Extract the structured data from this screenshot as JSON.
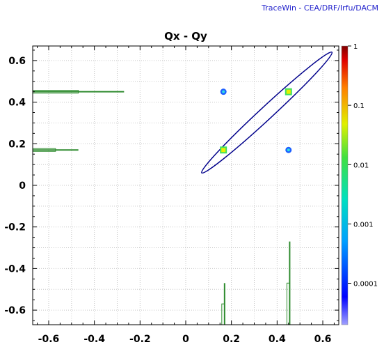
{
  "header": {
    "credit": "TraceWin - CEA/DRF/Irfu/DACM"
  },
  "chart_data": {
    "type": "scatter",
    "title": "Qx - Qy",
    "xlabel": "",
    "ylabel": "",
    "xlim": [
      -0.67,
      0.67
    ],
    "ylim": [
      -0.67,
      0.67
    ],
    "xticks": [
      -0.6,
      -0.4,
      -0.2,
      0,
      0.2,
      0.4,
      0.6
    ],
    "xtick_labels": [
      "-0.6",
      "-0.4",
      "-0.2",
      "0",
      "0.2",
      "0.4",
      "0.6"
    ],
    "yticks": [
      -0.6,
      -0.4,
      -0.2,
      0,
      0.2,
      0.4,
      0.6
    ],
    "ytick_labels": [
      "-0.6",
      "-0.4",
      "-0.2",
      "0",
      "0.2",
      "0.4",
      "0.6"
    ],
    "grid": true,
    "points": [
      {
        "x": 0.165,
        "y": 0.45,
        "level": "low"
      },
      {
        "x": 0.45,
        "y": 0.45,
        "level": "mid"
      },
      {
        "x": 0.165,
        "y": 0.17,
        "level": "mid"
      },
      {
        "x": 0.45,
        "y": 0.17,
        "level": "low"
      }
    ],
    "ellipse": {
      "x1": 0.07,
      "y1": 0.06,
      "x2": 0.64,
      "y2": 0.64,
      "semi_minor": 0.028
    },
    "x_histogram": [
      {
        "x": 0.17,
        "height": 0.2
      },
      {
        "x": 0.455,
        "height": 0.4
      }
    ],
    "y_histogram": [
      {
        "y": 0.45,
        "height": 0.4
      },
      {
        "y": 0.17,
        "height": 0.2
      }
    ],
    "colorbar": {
      "scale": "log",
      "range": [
        2e-05,
        1
      ],
      "ticks": [
        1,
        0.1,
        0.01,
        0.001,
        0.0001
      ],
      "tick_labels": [
        "1",
        "0.1",
        "0.01",
        "0.001",
        "0.0001"
      ]
    },
    "colors": {
      "ellipse": "#00008b",
      "histogram": "#2e8b2e",
      "grid": "#c8c8c8",
      "credit": "#2222cc"
    }
  }
}
